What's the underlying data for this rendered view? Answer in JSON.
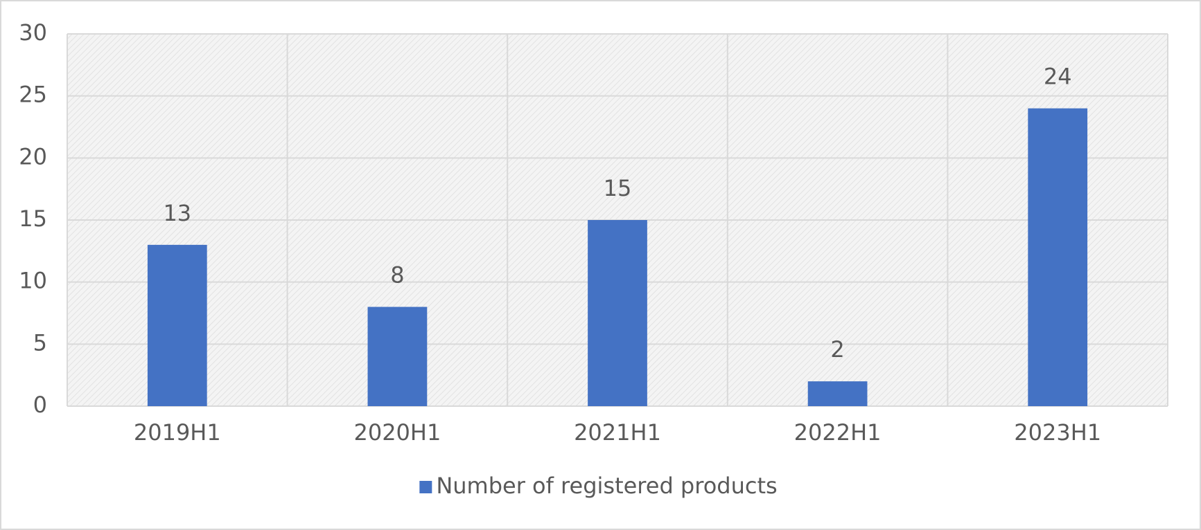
{
  "chart_data": {
    "type": "bar",
    "categories": [
      "2019H1",
      "2020H1",
      "2021H1",
      "2022H1",
      "2023H1"
    ],
    "series": [
      {
        "name": "Number of registered products",
        "color": "#4472c4",
        "values": [
          13,
          8,
          15,
          2,
          24
        ]
      }
    ],
    "ylim": [
      0,
      30
    ],
    "yticks": [
      0,
      5,
      10,
      15,
      20,
      25,
      30
    ],
    "grid": true,
    "legend": "bottom"
  }
}
